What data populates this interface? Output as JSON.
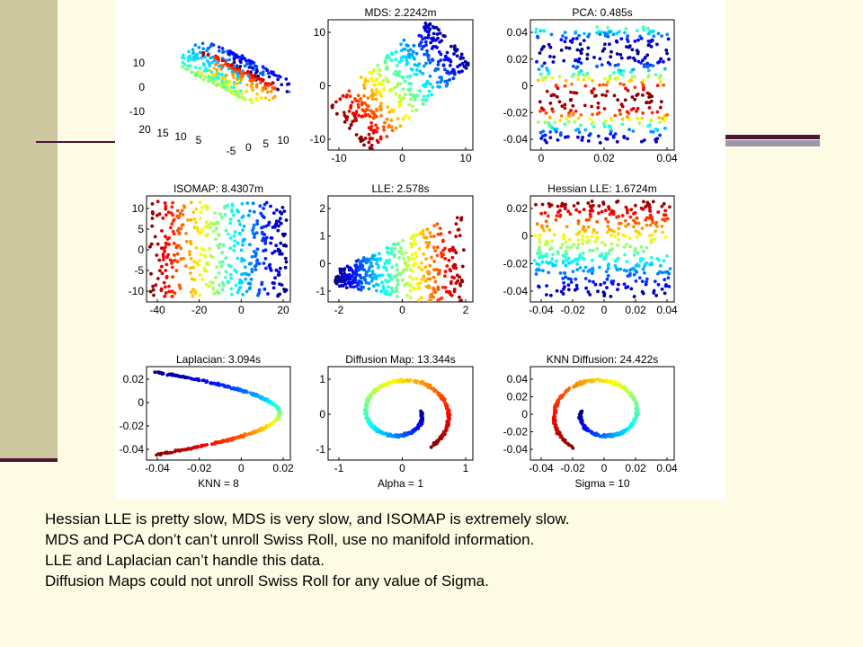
{
  "slide": {
    "colors": {
      "background": "#fdfbe3",
      "sidebar": "#ccc79e",
      "accent_dark": "#4b1536",
      "accent_gray": "#9d98a8"
    }
  },
  "figure": {
    "panels": [
      {
        "title": "",
        "xlabel": "",
        "kind": "3d_swiss_roll",
        "yticks": [
          "10",
          "0",
          "-10"
        ],
        "depth_ticks": [
          "20",
          "15",
          "10",
          "5"
        ],
        "xticks": [
          "-5",
          "0",
          "5",
          "10"
        ]
      },
      {
        "title": "MDS: 2.2242m",
        "xlabel": "",
        "kind": "rotated_band",
        "yticks": [
          "10",
          "0",
          "-10"
        ],
        "xticks": [
          "-10",
          "0",
          "10"
        ]
      },
      {
        "title": "PCA: 0.485s",
        "xlabel": "",
        "kind": "horizontal_bands",
        "yticks": [
          "0.04",
          "0.02",
          "0",
          "-0.02",
          "-0.04"
        ],
        "xticks": [
          "0",
          "0.02",
          "0.04"
        ]
      },
      {
        "title": "ISOMAP: 8.4307m",
        "xlabel": "",
        "kind": "unrolled_horizontal",
        "yticks": [
          "10",
          "5",
          "0",
          "-5",
          "-10"
        ],
        "xticks": [
          "-40",
          "-20",
          "0",
          "20"
        ]
      },
      {
        "title": "LLE: 2.578s",
        "xlabel": "",
        "kind": "wedge",
        "yticks": [
          "2",
          "1",
          "0",
          "-1"
        ],
        "xticks": [
          "-2",
          "0",
          "2"
        ]
      },
      {
        "title": "Hessian LLE: 1.6724m",
        "xlabel": "",
        "kind": "unrolled_vertical",
        "yticks": [
          "0.02",
          "0",
          "-0.02",
          "-0.04"
        ],
        "xticks": [
          "-0.04",
          "-0.02",
          "0",
          "0.02",
          "0.04"
        ]
      },
      {
        "title": "Laplacian: 3.094s",
        "xlabel": "KNN = 8",
        "kind": "parabola",
        "yticks": [
          "0.02",
          "0",
          "-0.02",
          "-0.04"
        ],
        "xticks": [
          "-0.04",
          "-0.02",
          "0",
          "0.02"
        ]
      },
      {
        "title": "Diffusion Map: 13.344s",
        "xlabel": "Alpha = 1",
        "kind": "spiral",
        "yticks": [
          "1",
          "0",
          "-1"
        ],
        "xticks": [
          "-1",
          "0",
          "1"
        ]
      },
      {
        "title": "KNN Diffusion: 24.422s",
        "xlabel": "Sigma = 10",
        "kind": "spiral_mirror",
        "yticks": [
          "0.04",
          "0.02",
          "0",
          "-0.02",
          "-0.04"
        ],
        "xticks": [
          "-0.04",
          "-0.02",
          "0",
          "0.02",
          "0.04"
        ]
      }
    ]
  },
  "caption": {
    "lines": [
      "Hessian LLE is pretty slow, MDS is very slow, and ISOMAP is extremely slow.",
      "MDS and PCA don’t can’t unroll Swiss Roll, use no manifold information.",
      "LLE and Laplacian can’t handle this data.",
      "Diffusion Maps could not unroll Swiss Roll for any value of Sigma."
    ]
  }
}
